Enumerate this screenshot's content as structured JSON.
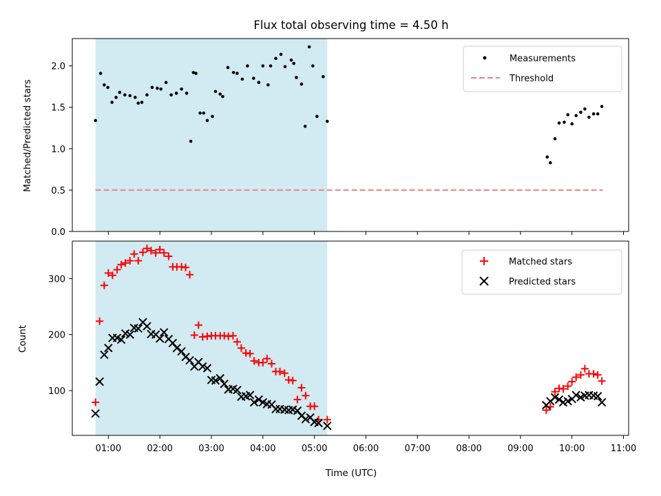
{
  "figure": {
    "title": "Flux total observing time = 4.50 h"
  },
  "chart_data": [
    {
      "type": "scatter",
      "ylabel": "Matched/Predicted stars",
      "xlabel": "",
      "xlim": [
        0.3,
        11.1
      ],
      "ylim": [
        0,
        2.33
      ],
      "grid": false,
      "legend_position": "top-right",
      "highlight_band": {
        "x": [
          0.75,
          5.25
        ],
        "color": "#add8e6"
      },
      "series": [
        {
          "name": "Measurements",
          "kind": "points",
          "color": "#000000",
          "x": [
            0.75,
            0.85,
            0.92,
            0.99,
            1.07,
            1.15,
            1.22,
            1.32,
            1.42,
            1.52,
            1.58,
            1.65,
            1.75,
            1.85,
            1.95,
            2.02,
            2.12,
            2.22,
            2.32,
            2.42,
            2.52,
            2.6,
            2.65,
            2.7,
            2.78,
            2.85,
            2.92,
            3.02,
            3.08,
            3.17,
            3.22,
            3.32,
            3.43,
            3.5,
            3.6,
            3.7,
            3.82,
            3.92,
            4.0,
            4.1,
            4.15,
            4.25,
            4.35,
            4.43,
            4.55,
            4.6,
            4.65,
            4.75,
            4.82,
            4.9,
            4.97,
            5.05,
            5.17,
            5.25,
            9.52,
            9.58,
            9.67,
            9.75,
            9.85,
            9.92,
            10.0,
            10.08,
            10.17,
            10.25,
            10.33,
            10.42,
            10.5,
            10.58
          ],
          "y": [
            1.34,
            1.91,
            1.77,
            1.74,
            1.56,
            1.62,
            1.68,
            1.65,
            1.64,
            1.62,
            1.55,
            1.56,
            1.65,
            1.74,
            1.73,
            1.72,
            1.8,
            1.65,
            1.67,
            1.72,
            1.67,
            1.09,
            1.92,
            1.91,
            1.43,
            1.43,
            1.34,
            1.39,
            1.69,
            1.66,
            1.63,
            1.98,
            1.92,
            1.91,
            1.84,
            2.0,
            1.85,
            1.8,
            2.0,
            1.77,
            2.0,
            2.09,
            2.14,
            1.99,
            2.07,
            2.03,
            1.86,
            1.78,
            1.27,
            2.23,
            2.0,
            1.39,
            1.87,
            1.33,
            0.9,
            0.83,
            1.12,
            1.31,
            1.32,
            1.41,
            1.3,
            1.4,
            1.44,
            1.48,
            1.38,
            1.42,
            1.42,
            1.51
          ]
        },
        {
          "name": "Threshold",
          "kind": "dashed-line",
          "color": "#f08080",
          "x": [
            0.75,
            10.6
          ],
          "y": [
            0.5,
            0.5
          ]
        }
      ]
    },
    {
      "type": "scatter",
      "ylabel": "Count",
      "xlabel": "Time (UTC)",
      "xlim": [
        0.3,
        11.1
      ],
      "ylim": [
        20,
        367
      ],
      "grid": false,
      "legend_position": "top-right",
      "highlight_band": {
        "x": [
          0.75,
          5.25
        ],
        "color": "#add8e6"
      },
      "x_ticks": [
        "01:00",
        "02:00",
        "03:00",
        "04:00",
        "05:00",
        "06:00",
        "07:00",
        "08:00",
        "09:00",
        "10:00",
        "11:00"
      ],
      "series": [
        {
          "name": "Matched stars",
          "kind": "plus",
          "color": "#ff0000",
          "x": [
            0.75,
            0.83,
            0.92,
            1.0,
            1.08,
            1.17,
            1.25,
            1.33,
            1.42,
            1.5,
            1.58,
            1.67,
            1.75,
            1.83,
            1.92,
            2.0,
            2.08,
            2.17,
            2.25,
            2.33,
            2.42,
            2.5,
            2.58,
            2.67,
            2.75,
            2.83,
            2.92,
            3.0,
            3.08,
            3.17,
            3.25,
            3.33,
            3.42,
            3.5,
            3.58,
            3.67,
            3.75,
            3.83,
            3.92,
            4.0,
            4.08,
            4.17,
            4.25,
            4.33,
            4.42,
            4.5,
            4.58,
            4.67,
            4.75,
            4.83,
            4.92,
            5.0,
            5.08,
            5.25,
            9.5,
            9.58,
            9.67,
            9.75,
            9.83,
            9.92,
            10.0,
            10.08,
            10.17,
            10.25,
            10.33,
            10.42,
            10.5,
            10.58
          ],
          "y": [
            79,
            224,
            288,
            310,
            306,
            316,
            325,
            328,
            332,
            344,
            332,
            347,
            354,
            350,
            346,
            352,
            346,
            340,
            321,
            321,
            321,
            320,
            307,
            199,
            217,
            196,
            197,
            198,
            198,
            198,
            198,
            197,
            198,
            187,
            176,
            167,
            166,
            153,
            150,
            150,
            157,
            148,
            134,
            134,
            131,
            119,
            118,
            84,
            105,
            91,
            72,
            72,
            48,
            48,
            65,
            71,
            98,
            104,
            103,
            108,
            116,
            124,
            128,
            139,
            130,
            130,
            128,
            117
          ]
        },
        {
          "name": "Predicted stars",
          "kind": "x",
          "color": "#000000",
          "x": [
            0.75,
            0.83,
            0.92,
            1.0,
            1.08,
            1.17,
            1.25,
            1.33,
            1.42,
            1.5,
            1.58,
            1.67,
            1.75,
            1.83,
            1.92,
            2.0,
            2.08,
            2.17,
            2.25,
            2.33,
            2.42,
            2.5,
            2.58,
            2.67,
            2.75,
            2.83,
            2.92,
            3.0,
            3.08,
            3.17,
            3.25,
            3.33,
            3.42,
            3.5,
            3.58,
            3.67,
            3.75,
            3.83,
            3.92,
            4.0,
            4.08,
            4.17,
            4.25,
            4.33,
            4.42,
            4.5,
            4.58,
            4.67,
            4.75,
            4.83,
            4.92,
            5.0,
            5.08,
            5.25,
            9.5,
            9.58,
            9.67,
            9.75,
            9.83,
            9.92,
            10.0,
            10.08,
            10.17,
            10.25,
            10.33,
            10.42,
            10.5,
            10.58
          ],
          "y": [
            59,
            116,
            164,
            176,
            194,
            194,
            191,
            202,
            200,
            212,
            211,
            222,
            215,
            201,
            200,
            193,
            204,
            192,
            185,
            176,
            170,
            160,
            154,
            143,
            151,
            143,
            140,
            119,
            118,
            122,
            112,
            102,
            103,
            101,
            89,
            90,
            92,
            79,
            84,
            79,
            76,
            75,
            67,
            67,
            66,
            65,
            66,
            64,
            55,
            49,
            52,
            44,
            42,
            37,
            74,
            81,
            88,
            84,
            79,
            81,
            85,
            92,
            88,
            91,
            92,
            91,
            90,
            79
          ]
        }
      ]
    }
  ],
  "layout_ticks": {
    "top_y_ticks": [
      "0.0",
      "0.5",
      "1.0",
      "1.5",
      "2.0"
    ],
    "bottom_y_ticks": [
      "100",
      "200",
      "300"
    ]
  }
}
